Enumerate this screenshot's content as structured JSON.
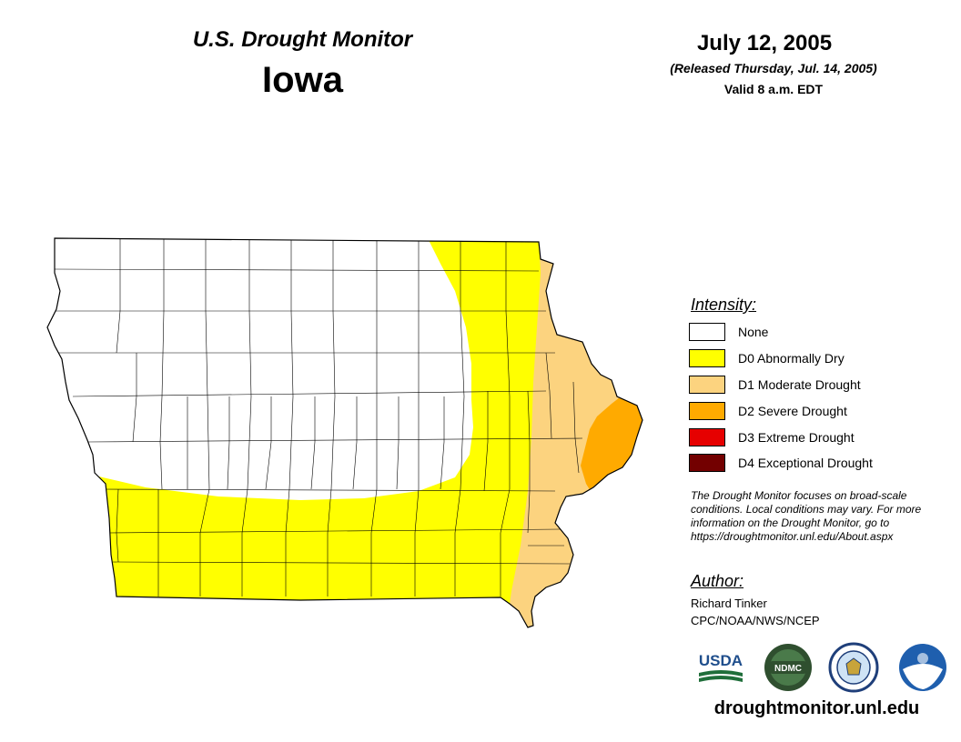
{
  "header": {
    "title": "U.S. Drought Monitor",
    "state": "Iowa",
    "date": "July 12, 2005",
    "released": "(Released Thursday, Jul. 14, 2005)",
    "valid": "Valid 8 a.m. EDT"
  },
  "legend": {
    "title": "Intensity:",
    "items": [
      {
        "label": "None",
        "color": "#ffffff"
      },
      {
        "label": "D0 Abnormally Dry",
        "color": "#ffff00"
      },
      {
        "label": "D1 Moderate Drought",
        "color": "#fcd37f"
      },
      {
        "label": "D2 Severe Drought",
        "color": "#ffaa00"
      },
      {
        "label": "D3 Extreme Drought",
        "color": "#e60000"
      },
      {
        "label": "D4 Exceptional Drought",
        "color": "#730000"
      }
    ]
  },
  "note": "The Drought Monitor focuses on broad-scale conditions. Local conditions may vary. For more information on the Drought Monitor, go to https://droughtmonitor.unl.edu/About.aspx",
  "author": {
    "title": "Author:",
    "name": "Richard Tinker",
    "org": "CPC/NOAA/NWS/NCEP"
  },
  "logos": {
    "usda": "USDA",
    "ndmc": "NDMC",
    "noaa": "NOAA",
    "dept": "department-seal-icon"
  },
  "footer": {
    "site": "droughtmonitor.unl.edu"
  },
  "colors": {
    "none": "#ffffff",
    "d0": "#ffff00",
    "d1": "#fcd37f",
    "d2": "#ffaa00",
    "d3": "#e60000",
    "d4": "#730000"
  }
}
